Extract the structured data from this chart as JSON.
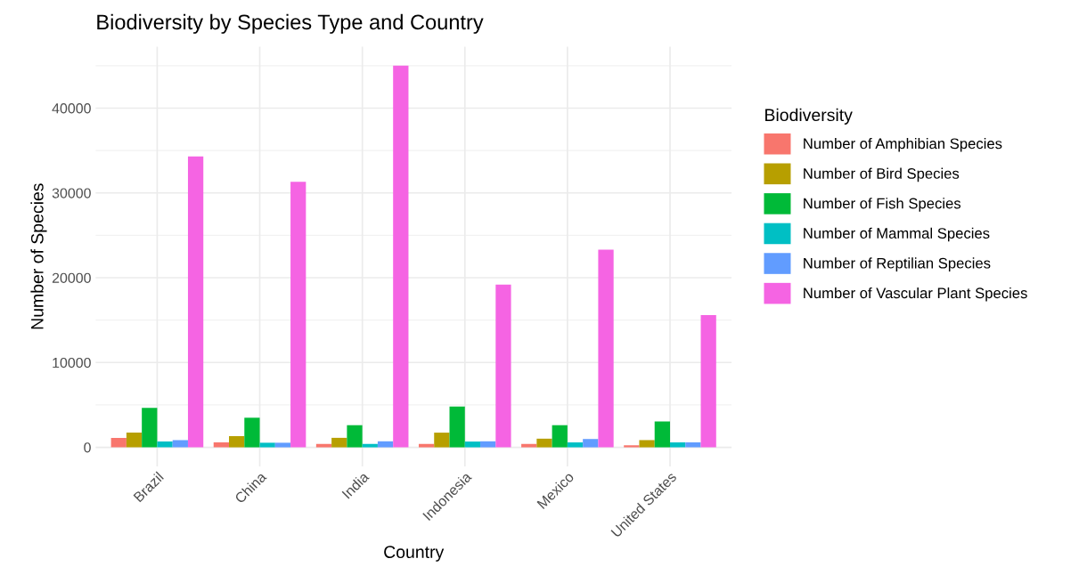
{
  "chart_data": {
    "type": "bar",
    "title": "Biodiversity by Species Type and Country",
    "xlabel": "Country",
    "ylabel": "Number of Species",
    "legend_title": "Biodiversity",
    "categories": [
      "Brazil",
      "China",
      "India",
      "Indonesia",
      "Mexico",
      "United States"
    ],
    "series": [
      {
        "name": "Number of Amphibian Species",
        "color": "#f8766d",
        "values": [
          1100,
          580,
          400,
          400,
          400,
          240
        ]
      },
      {
        "name": "Number of Bird Species",
        "color": "#b79f00",
        "values": [
          1730,
          1320,
          1120,
          1730,
          1020,
          850
        ]
      },
      {
        "name": "Number of Fish Species",
        "color": "#00ba38",
        "values": [
          4640,
          3490,
          2610,
          4810,
          2610,
          3050
        ]
      },
      {
        "name": "Number of Mammal Species",
        "color": "#00bfc4",
        "values": [
          680,
          540,
          400,
          680,
          580,
          580
        ]
      },
      {
        "name": "Number of Reptilian Species",
        "color": "#619cff",
        "values": [
          850,
          540,
          710,
          710,
          980,
          580
        ]
      },
      {
        "name": "Number of Vascular Plant Species",
        "color": "#f564e3",
        "values": [
          34300,
          31300,
          45000,
          19200,
          23300,
          15600
        ]
      }
    ],
    "ylim": [
      -2250,
      47250
    ],
    "yticks": [
      0,
      10000,
      20000,
      30000,
      40000
    ],
    "grid": true,
    "legend": "right"
  }
}
